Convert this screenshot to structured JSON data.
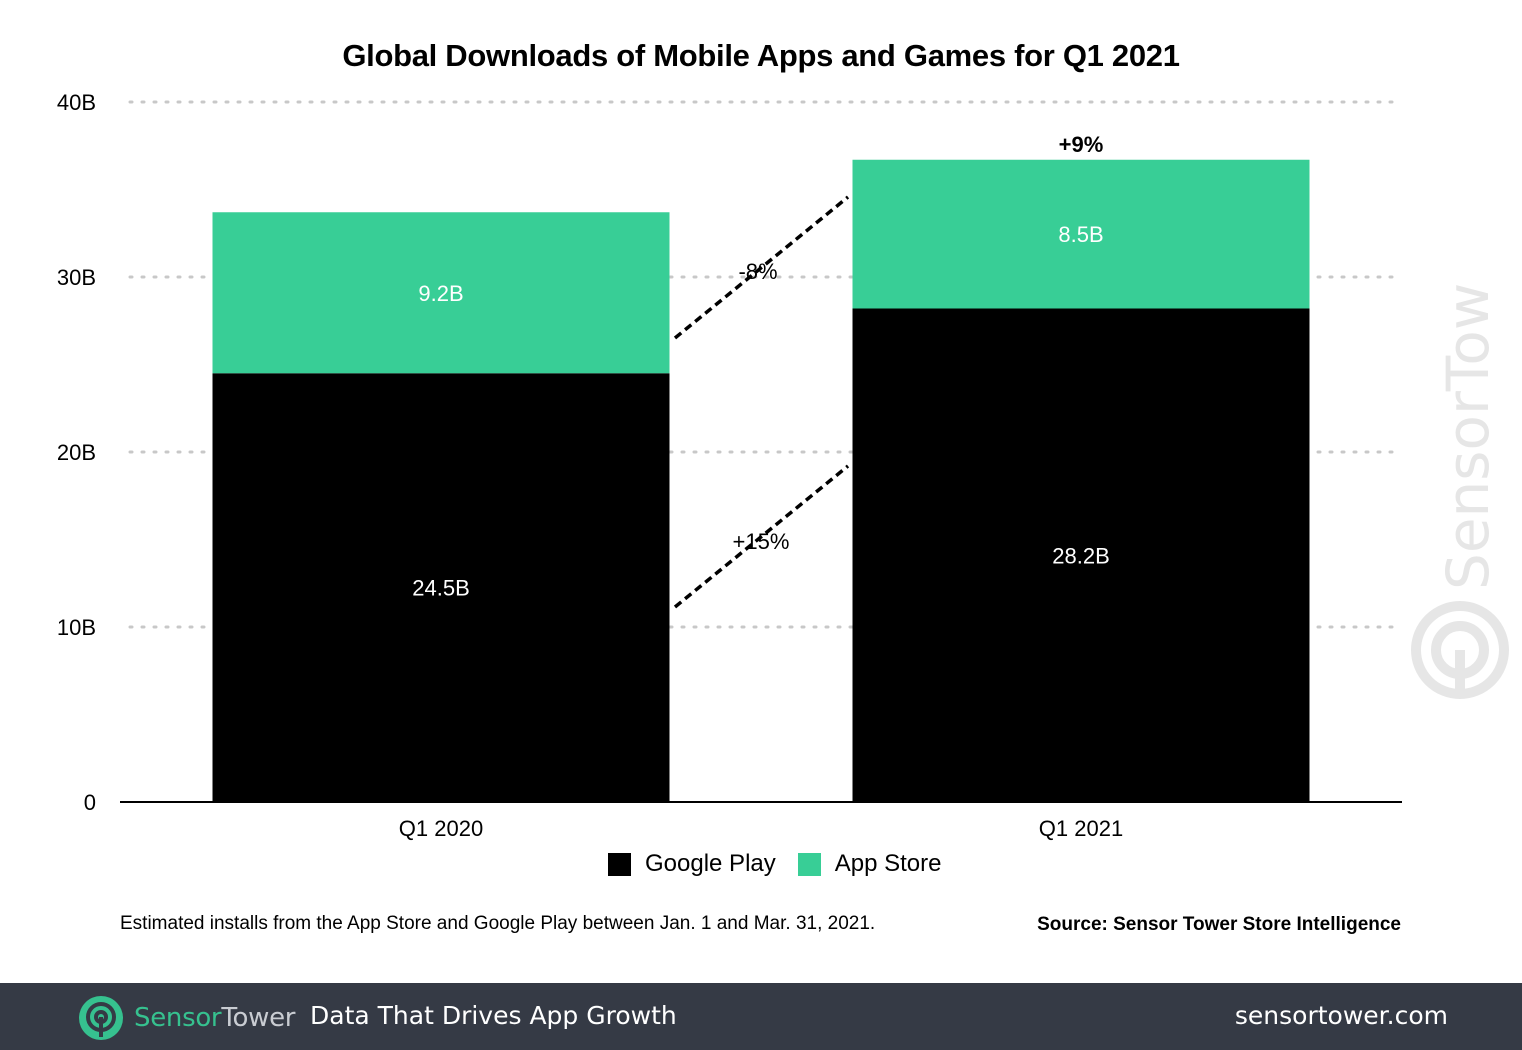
{
  "chart_data": {
    "type": "bar",
    "stacked": true,
    "title": "Global Downloads of Mobile Apps and Games for Q1 2021",
    "categories": [
      "Q1 2020",
      "Q1 2021"
    ],
    "series": [
      {
        "name": "Google Play",
        "color": "#000000",
        "values": [
          24.5,
          28.2
        ],
        "labels": [
          "24.5B",
          "28.2B"
        ]
      },
      {
        "name": "App Store",
        "color": "#38ce96",
        "values": [
          9.2,
          8.5
        ],
        "labels": [
          "9.2B",
          "8.5B"
        ]
      }
    ],
    "ylim": [
      0,
      40
    ],
    "yticks": [
      0,
      10,
      20,
      30,
      40
    ],
    "ytick_labels": [
      "0",
      "10B",
      "20B",
      "30B",
      "40B"
    ],
    "grid": "dotted horizontal",
    "legend_position": "bottom-center",
    "annotations": {
      "total_change": "+9%",
      "app_store_change": "-8%",
      "google_play_change": "+15%"
    }
  },
  "note": "Estimated installs from the App Store and Google Play between Jan. 1 and Mar. 31, 2021.",
  "source": "Source: Sensor Tower Store Intelligence",
  "watermark": "SensorTower",
  "footer": {
    "brand_sensor": "Sensor",
    "brand_tower": "Tower",
    "tagline": "Data That Drives App Growth",
    "site": "sensortower.com",
    "logo_icon": "sensortower-logo-icon"
  }
}
